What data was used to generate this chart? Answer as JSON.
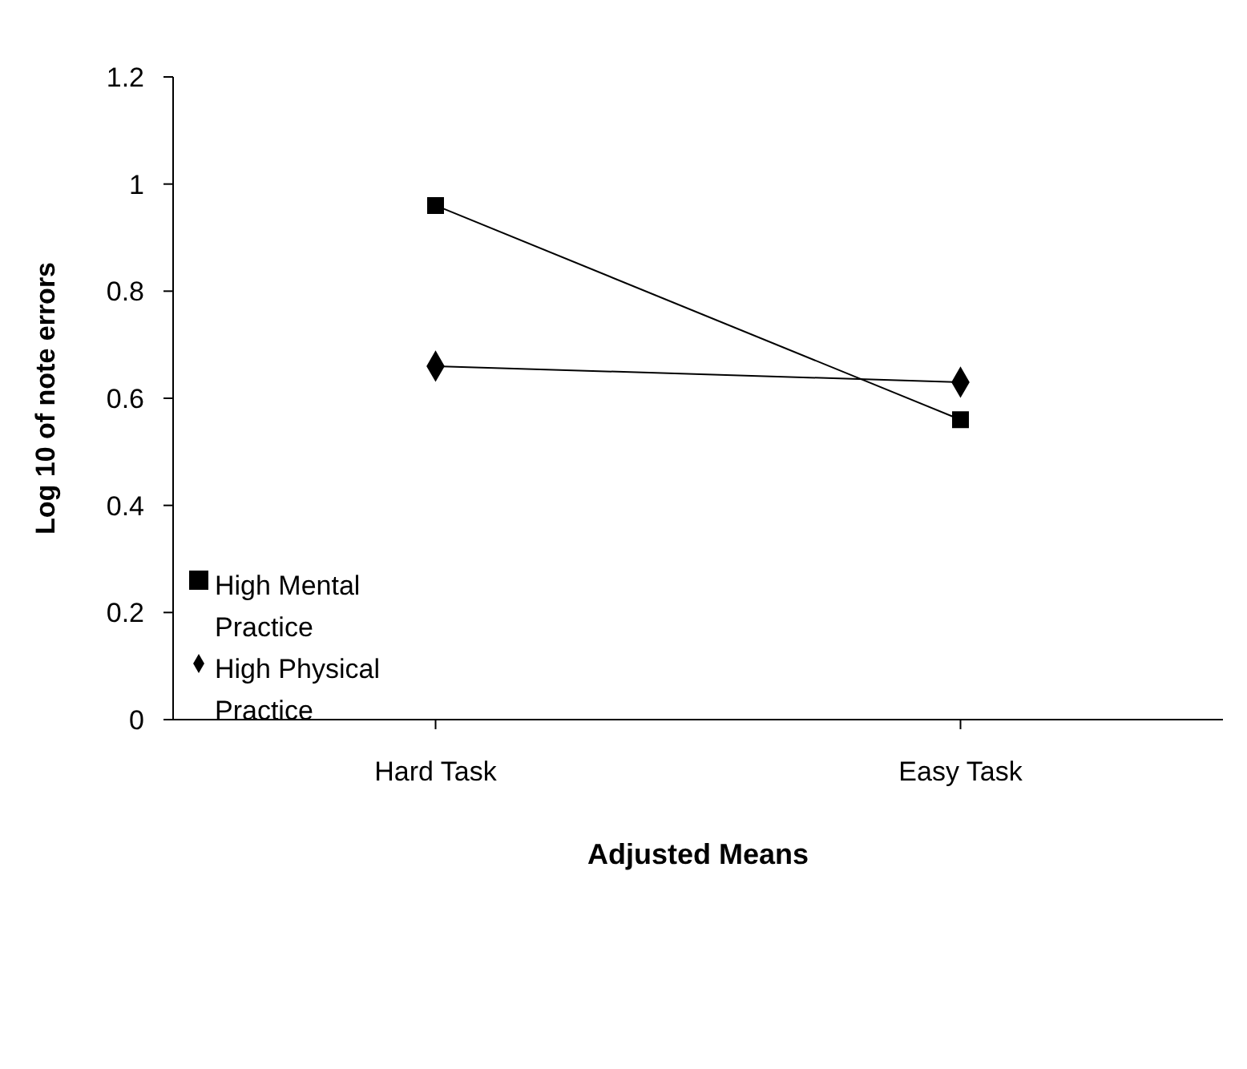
{
  "chart_data": {
    "type": "line",
    "xlabel": "Adjusted Means",
    "ylabel": "Log 10  of note errors",
    "categories": [
      "Hard Task",
      "Easy Task"
    ],
    "series": [
      {
        "name": "High Physical Practice",
        "color": "#000000",
        "marker": "diamond",
        "values": [
          0.66,
          0.63
        ]
      },
      {
        "name": "High Mental Practice",
        "color": "#000000",
        "marker": "square",
        "values": [
          0.96,
          0.56
        ]
      }
    ],
    "ylim": [
      0,
      1.2
    ],
    "yticks": [
      0,
      0.2,
      0.4,
      0.6,
      0.8,
      1,
      1.2
    ],
    "grid": false,
    "legend": "left",
    "line_style": "solid"
  }
}
